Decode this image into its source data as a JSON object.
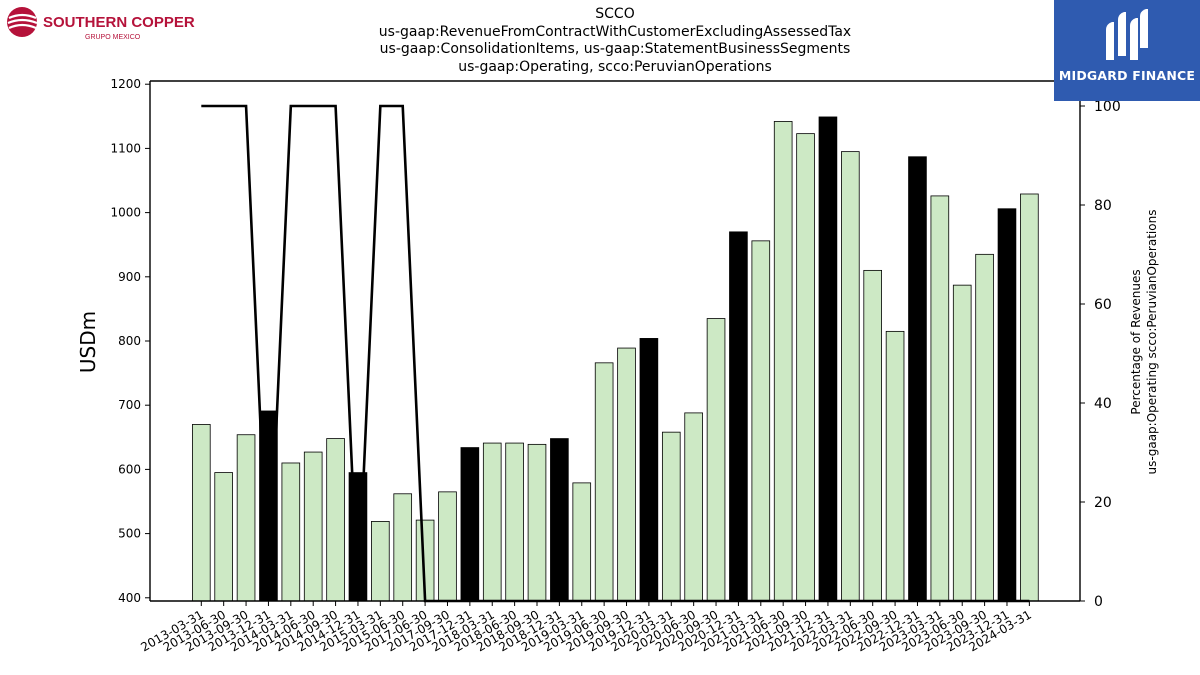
{
  "header": {
    "title_lines": [
      "SCCO",
      "us-gaap:RevenueFromContractWithCustomerExcludingAssessedTax",
      "us-gaap:ConsolidationItems, us-gaap:StatementBusinessSegments",
      "us-gaap:Operating, scco:PeruvianOperations"
    ]
  },
  "logos": {
    "left_name": "SOUTHERN COPPER",
    "left_sub": "GRUPO MEXICO",
    "right_name": "MIDGARD FINANCE"
  },
  "colors": {
    "bar_light": "#cde9c5",
    "bar_dark": "#000000",
    "line": "#000000",
    "brand_red": "#b5123a",
    "brand_blue": "#2f5bb0"
  },
  "chart_data": {
    "type": "bar",
    "ylabel": "USDm",
    "ylabel_right": [
      "Percentage of Revenues",
      "us-gaap:Operating scco:PeruvianOperations"
    ],
    "ylim": [
      395,
      1205
    ],
    "ylim_right": [
      0,
      100
    ],
    "yticks": [
      400,
      500,
      600,
      700,
      800,
      900,
      1000,
      1100,
      1200
    ],
    "yticks_right": [
      0,
      20,
      40,
      60,
      80,
      100
    ],
    "grid": false,
    "categories": [
      "2013-03-31",
      "2013-06-30",
      "2013-09-30",
      "2013-12-31",
      "2014-03-31",
      "2014-06-30",
      "2014-09-30",
      "2014-12-31",
      "2015-03-31",
      "2015-06-30",
      "2017-06-30",
      "2017-09-30",
      "2017-12-31",
      "2018-03-31",
      "2018-06-30",
      "2018-09-30",
      "2018-12-31",
      "2019-03-31",
      "2019-06-30",
      "2019-09-30",
      "2019-12-31",
      "2020-03-31",
      "2020-06-30",
      "2020-09-30",
      "2020-12-31",
      "2021-03-31",
      "2021-06-30",
      "2021-09-30",
      "2021-12-31",
      "2022-03-31",
      "2022-06-30",
      "2022-09-30",
      "2022-12-31",
      "2023-03-31",
      "2023-06-30",
      "2023-09-30",
      "2023-12-31",
      "2024-03-31"
    ],
    "values": [
      670,
      595,
      654,
      691,
      610,
      627,
      648,
      595,
      519,
      562,
      521,
      565,
      634,
      641,
      641,
      639,
      648,
      579,
      766,
      789,
      804,
      658,
      688,
      835,
      970,
      956,
      1142,
      1123,
      1149,
      1095,
      910,
      815,
      1087,
      1026,
      887,
      935,
      1006,
      1029
    ],
    "dark_bars": [
      3,
      7,
      12,
      16,
      20,
      24,
      28,
      32,
      36
    ],
    "series": [
      {
        "name": "Percentage of Revenues",
        "axis": "right",
        "values": [
          100,
          100,
          100,
          0,
          100,
          100,
          100,
          0,
          100,
          100,
          0,
          0,
          0,
          0,
          0,
          0,
          0,
          0,
          0,
          0,
          0,
          0,
          0,
          0,
          0,
          0,
          0,
          0,
          0,
          0,
          0,
          0,
          0,
          0,
          0,
          0,
          0,
          0
        ]
      }
    ]
  }
}
